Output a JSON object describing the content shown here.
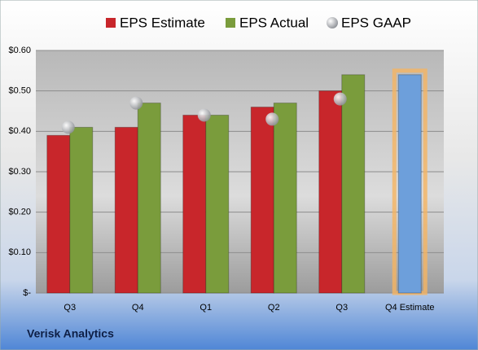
{
  "chart_data": {
    "type": "bar",
    "categories": [
      "Q3",
      "Q4",
      "Q1",
      "Q2",
      "Q3",
      "Q4 Estimate"
    ],
    "series": [
      {
        "name": "EPS Estimate",
        "color": "#c8262b",
        "colors": [
          "#c8262b",
          "#c8262b",
          "#c8262b",
          "#c8262b",
          "#c8262b",
          "#6d9fdb"
        ],
        "values": [
          0.39,
          0.41,
          0.44,
          0.46,
          0.5,
          0.54
        ]
      },
      {
        "name": "EPS Actual",
        "color": "#7a9c3c",
        "values": [
          0.41,
          0.47,
          0.44,
          0.47,
          0.54,
          null
        ]
      },
      {
        "name": "EPS GAAP",
        "color": "#a8abb0",
        "marker": "circle",
        "values": [
          0.41,
          0.47,
          0.44,
          0.43,
          0.48,
          null
        ]
      }
    ],
    "ylim": [
      0,
      0.6
    ],
    "yticks": [
      {
        "value": 0,
        "label": "$-"
      },
      {
        "value": 0.1,
        "label": "$0.10"
      },
      {
        "value": 0.2,
        "label": "$0.20"
      },
      {
        "value": 0.3,
        "label": "$0.30"
      },
      {
        "value": 0.4,
        "label": "$0.40"
      },
      {
        "value": 0.5,
        "label": "$0.50"
      },
      {
        "value": 0.6,
        "label": "$0.60"
      }
    ],
    "grid": true,
    "legend": "top",
    "source": "Verisk Analytics"
  }
}
